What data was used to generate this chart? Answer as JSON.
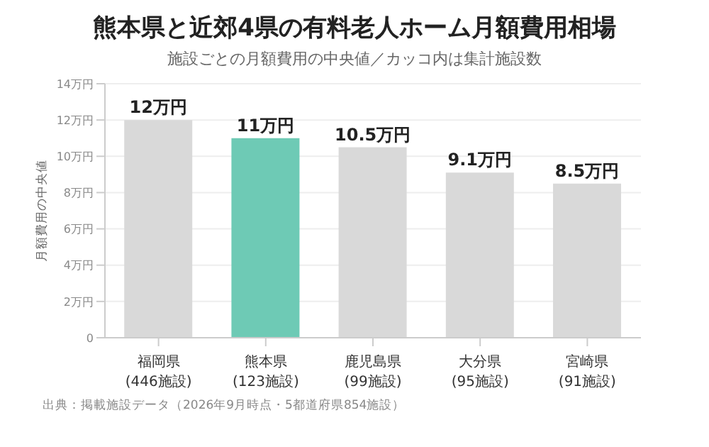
{
  "chart_data": {
    "type": "bar",
    "title": "熊本県と近郊4県の有料老人ホーム月額費用相場",
    "subtitle": "施設ごとの月額費用の中央値／カッコ内は集計施設数",
    "ylabel": "月額費用の中央値",
    "categories": [
      "福岡県\n(446施設)",
      "熊本県\n(123施設)",
      "鹿児島県\n(99施設)",
      "大分県\n(95施設)",
      "宮崎県\n(91施設)"
    ],
    "values": [
      12,
      11,
      10.5,
      9.1,
      8.5
    ],
    "colors": [
      "#d9d9d9",
      "#6ecab5",
      "#d9d9d9",
      "#d9d9d9",
      "#d9d9d9"
    ],
    "value_labels": [
      "12万円",
      "11万円",
      "10.5万円",
      "9.1万円",
      "8.5万円"
    ],
    "ylim": [
      0,
      14
    ],
    "yticks": [
      0,
      {
        "value": 2,
        "label": "2万円"
      },
      {
        "value": 4,
        "label": "4万円"
      },
      {
        "value": 6,
        "label": "6万円"
      },
      {
        "value": 8,
        "label": "8万円"
      },
      {
        "value": 10,
        "label": "10万円"
      },
      {
        "value": 12,
        "label": "12万円"
      },
      {
        "value": 14,
        "label": "14万円"
      }
    ],
    "grid": "y",
    "annotations": [
      "出典：掲載施設データ（2026年9月時点・5都道府県854施設）"
    ]
  }
}
